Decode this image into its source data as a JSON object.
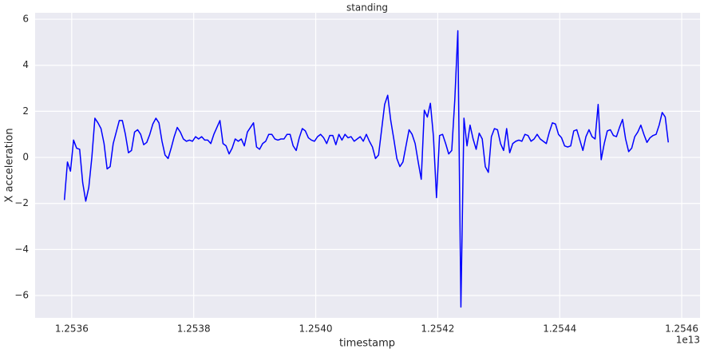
{
  "chart_data": {
    "type": "line",
    "title": "standing",
    "x_label": "timestamp",
    "y_label": "X acceleration",
    "x_offset": "1e13",
    "x": [
      1.253588,
      1.253593,
      1.253598,
      1.253603,
      1.253608,
      1.253613,
      1.253618,
      1.253623,
      1.253628,
      1.253633,
      1.253638,
      1.253643,
      1.253648,
      1.253653,
      1.253658,
      1.253663,
      1.253668,
      1.253673,
      1.253678,
      1.253683,
      1.253688,
      1.253693,
      1.253698,
      1.253703,
      1.253708,
      1.253713,
      1.253718,
      1.253723,
      1.253728,
      1.253733,
      1.253738,
      1.253743,
      1.253748,
      1.253753,
      1.253758,
      1.253763,
      1.253768,
      1.253773,
      1.253778,
      1.253783,
      1.253788,
      1.253793,
      1.253798,
      1.253803,
      1.253808,
      1.253813,
      1.253818,
      1.253823,
      1.253828,
      1.253833,
      1.253838,
      1.253843,
      1.253848,
      1.253853,
      1.253858,
      1.253863,
      1.253868,
      1.253873,
      1.253878,
      1.253883,
      1.253888,
      1.253893,
      1.253898,
      1.253903,
      1.253908,
      1.253913,
      1.253918,
      1.253923,
      1.253928,
      1.253933,
      1.253938,
      1.253943,
      1.253948,
      1.253953,
      1.253958,
      1.253963,
      1.253968,
      1.253973,
      1.253978,
      1.253983,
      1.253988,
      1.253993,
      1.253998,
      1.254003,
      1.254008,
      1.254013,
      1.254018,
      1.254023,
      1.254028,
      1.254033,
      1.254038,
      1.254043,
      1.254048,
      1.254053,
      1.254058,
      1.254063,
      1.254068,
      1.254073,
      1.254078,
      1.254083,
      1.254088,
      1.254093,
      1.254098,
      1.254103,
      1.254108,
      1.254113,
      1.254118,
      1.254123,
      1.254128,
      1.254133,
      1.254138,
      1.254143,
      1.254148,
      1.254153,
      1.254158,
      1.254163,
      1.254168,
      1.254173,
      1.254178,
      1.254183,
      1.254188,
      1.254193,
      1.254198,
      1.254203,
      1.254208,
      1.254213,
      1.254218,
      1.254223,
      1.254228,
      1.254233,
      1.254238,
      1.254243,
      1.254248,
      1.254253,
      1.254258,
      1.254263,
      1.254268,
      1.254273,
      1.254278,
      1.254283,
      1.254288,
      1.254293,
      1.254298,
      1.254303,
      1.254308,
      1.254313,
      1.254318,
      1.254323,
      1.254328,
      1.254333,
      1.254338,
      1.254343,
      1.254348,
      1.254353,
      1.254358,
      1.254363,
      1.254368,
      1.254373,
      1.254378,
      1.254383,
      1.254388,
      1.254393,
      1.254398,
      1.254403,
      1.254408,
      1.254413,
      1.254418,
      1.254423,
      1.254428,
      1.254433,
      1.254438,
      1.254443,
      1.254448,
      1.254453,
      1.254458,
      1.254463,
      1.254468,
      1.254473,
      1.254478,
      1.254483,
      1.254488,
      1.254493,
      1.254498,
      1.254503,
      1.254508,
      1.254513,
      1.254518,
      1.254523,
      1.254528,
      1.254533,
      1.254538,
      1.254543,
      1.254548,
      1.254553,
      1.254558,
      1.254563,
      1.254568,
      1.254573,
      1.254578
    ],
    "values": [
      -1.85,
      -0.2,
      -0.6,
      0.75,
      0.4,
      0.35,
      -1.1,
      -1.9,
      -1.3,
      0.0,
      1.7,
      1.5,
      1.25,
      0.6,
      -0.5,
      -0.4,
      0.6,
      1.1,
      1.6,
      1.6,
      1.0,
      0.2,
      0.3,
      1.1,
      1.2,
      1.0,
      0.55,
      0.65,
      1.0,
      1.45,
      1.7,
      1.5,
      0.7,
      0.1,
      -0.05,
      0.4,
      0.9,
      1.3,
      1.1,
      0.8,
      0.7,
      0.75,
      0.7,
      0.9,
      0.8,
      0.9,
      0.75,
      0.75,
      0.6,
      1.0,
      1.3,
      1.6,
      0.6,
      0.5,
      0.15,
      0.4,
      0.8,
      0.7,
      0.8,
      0.5,
      1.1,
      1.3,
      1.5,
      0.45,
      0.35,
      0.6,
      0.7,
      1.0,
      1.0,
      0.8,
      0.75,
      0.8,
      0.8,
      1.0,
      1.0,
      0.5,
      0.3,
      0.85,
      1.25,
      1.15,
      0.85,
      0.75,
      0.7,
      0.9,
      1.0,
      0.85,
      0.6,
      0.95,
      0.95,
      0.55,
      1.0,
      0.75,
      1.0,
      0.85,
      0.9,
      0.7,
      0.8,
      0.9,
      0.7,
      1.0,
      0.7,
      0.45,
      -0.05,
      0.1,
      1.2,
      2.3,
      2.7,
      1.6,
      0.8,
      -0.05,
      -0.4,
      -0.2,
      0.5,
      1.2,
      1.0,
      0.6,
      -0.2,
      -0.95,
      2.05,
      1.75,
      2.35,
      0.9,
      -1.75,
      0.95,
      1.0,
      0.6,
      0.15,
      0.3,
      2.5,
      5.5,
      -6.5,
      1.7,
      0.5,
      1.4,
      0.8,
      0.35,
      1.05,
      0.8,
      -0.4,
      -0.65,
      0.9,
      1.25,
      1.2,
      0.6,
      0.3,
      1.25,
      0.2,
      0.6,
      0.7,
      0.75,
      0.7,
      1.0,
      0.95,
      0.7,
      0.8,
      1.0,
      0.8,
      0.7,
      0.6,
      1.1,
      1.5,
      1.45,
      1.0,
      0.85,
      0.5,
      0.45,
      0.5,
      1.15,
      1.2,
      0.75,
      0.3,
      0.9,
      1.2,
      0.9,
      0.8,
      2.3,
      -0.1,
      0.6,
      1.15,
      1.2,
      0.95,
      0.9,
      1.3,
      1.65,
      0.8,
      0.25,
      0.4,
      0.9,
      1.1,
      1.4,
      1.0,
      0.65,
      0.85,
      0.95,
      1.0,
      1.4,
      1.95,
      1.75,
      0.65
    ],
    "color": "#0000ff",
    "xlim": [
      1.25354,
      1.25463
    ],
    "xticks": [
      1.2536,
      1.2538,
      {
        "value": 1.254,
        "label": "1.2540"
      },
      1.2542,
      1.2544,
      1.2546
    ],
    "ylim": [
      -6.97,
      6.28
    ],
    "yticks": [
      {
        "value": -6,
        "label": "−6"
      },
      {
        "value": -4,
        "label": "−4"
      },
      {
        "value": -2,
        "label": "−2"
      },
      0,
      2,
      4,
      6
    ],
    "grid": true,
    "background": "#eaeaf2"
  }
}
